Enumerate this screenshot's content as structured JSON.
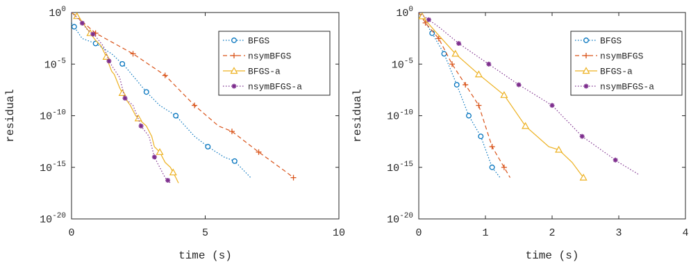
{
  "chart_data": [
    {
      "type": "line",
      "xlabel": "time (s)",
      "ylabel": "residual",
      "xlim": [
        0,
        10
      ],
      "ylim_log10": [
        -20,
        0
      ],
      "yscale": "log",
      "x_ticks": [
        "0",
        "5",
        "10"
      ],
      "y_ticks": [
        {
          "base": "10",
          "exp": "0"
        },
        {
          "base": "10",
          "exp": "-5"
        },
        {
          "base": "10",
          "exp": "-10"
        },
        {
          "base": "10",
          "exp": "-15"
        },
        {
          "base": "10",
          "exp": "-20"
        }
      ],
      "legend_position": "top-right",
      "grid": false,
      "series": [
        {
          "name": "BFGS",
          "color": "#0072BD",
          "style": "dotted",
          "marker": "circle",
          "x": [
            0,
            0.4,
            0.9,
            1.5,
            2.0,
            2.8,
            3.3,
            3.9,
            4.6,
            5.1,
            5.7,
            6.1,
            6.7
          ],
          "y": [
            0.1,
            0.003,
            0.001,
            0.0001,
            6e-06,
            2e-08,
            1e-09,
            1e-10,
            1e-12,
            1e-13,
            1e-14,
            4e-15,
            1e-16
          ],
          "marker_x": [
            0.1,
            0.9,
            1.9,
            2.8,
            3.9,
            5.1,
            6.1
          ]
        },
        {
          "name": "nsymBFGS",
          "color": "#D95319",
          "style": "dashed",
          "marker": "plus",
          "x": [
            0,
            0.9,
            1.6,
            2.3,
            3.5,
            4.6,
            5.5,
            6.0,
            7.0,
            8.0,
            8.3
          ],
          "y": [
            1,
            0.01,
            0.001,
            0.0001,
            8e-07,
            1e-09,
            1e-11,
            3e-12,
            3e-14,
            4e-16,
            1e-16
          ],
          "marker_x": [
            0.9,
            2.3,
            3.5,
            4.6,
            6.0,
            7.0,
            8.3
          ]
        },
        {
          "name": "BFGS-a",
          "color": "#EDB120",
          "style": "solid",
          "marker": "triangle",
          "x": [
            0,
            0.3,
            0.5,
            0.7,
            0.9,
            1.1,
            1.3,
            1.4,
            1.5,
            1.6,
            1.8,
            2.0,
            2.2,
            2.4,
            2.6,
            2.8,
            3.0,
            3.1,
            3.3,
            3.5,
            3.7,
            3.9,
            4.0
          ],
          "y": [
            1,
            0.3,
            0.05,
            0.01,
            0.002,
            0.0006,
            5e-05,
            1e-05,
            2e-06,
            1e-06,
            5e-08,
            5e-09,
            1e-09,
            1e-10,
            3e-11,
            1e-11,
            1e-12,
            1e-13,
            3e-14,
            3e-15,
            1e-15,
            1e-16,
            3e-17
          ],
          "marker_x": [
            0.2,
            0.7,
            1.3,
            1.9,
            2.5,
            3.3,
            3.8
          ]
        },
        {
          "name": "nsymBFGS-a",
          "color": "#7E2F8E",
          "style": "dotted",
          "marker": "star",
          "x": [
            0,
            0.3,
            0.6,
            0.9,
            1.2,
            1.4,
            1.6,
            1.8,
            2.0,
            2.3,
            2.6,
            2.9,
            3.1,
            3.3,
            3.5,
            3.7
          ],
          "y": [
            1,
            0.2,
            0.02,
            0.005,
            0.0005,
            2e-05,
            3e-06,
            5e-07,
            5e-09,
            1e-09,
            1e-11,
            1e-12,
            1e-14,
            1e-15,
            1e-16,
            3e-17
          ],
          "marker_x": [
            0.4,
            0.8,
            1.4,
            2.0,
            2.6,
            3.1,
            3.6
          ]
        }
      ]
    },
    {
      "type": "line",
      "xlabel": "time (s)",
      "ylabel": "residual",
      "xlim": [
        0,
        4
      ],
      "ylim_log10": [
        -20,
        0
      ],
      "yscale": "log",
      "x_ticks": [
        "0",
        "1",
        "2",
        "3",
        "4"
      ],
      "y_ticks": [
        {
          "base": "10",
          "exp": "0"
        },
        {
          "base": "10",
          "exp": "-5"
        },
        {
          "base": "10",
          "exp": "-10"
        },
        {
          "base": "10",
          "exp": "-15"
        },
        {
          "base": "10",
          "exp": "-20"
        }
      ],
      "legend_position": "top-right",
      "grid": false,
      "series": [
        {
          "name": "BFGS",
          "color": "#0072BD",
          "style": "dotted",
          "marker": "circle",
          "x": [
            0,
            0.2,
            0.38,
            0.57,
            0.75,
            0.93,
            1.1,
            1.22
          ],
          "y": [
            1,
            0.01,
            0.0001,
            1e-07,
            1e-10,
            1e-12,
            1e-15,
            1e-16
          ],
          "marker_x": [
            0.2,
            0.38,
            0.57,
            0.75,
            0.93,
            1.1
          ]
        },
        {
          "name": "nsymBFGS",
          "color": "#D95319",
          "style": "dashed",
          "marker": "plus",
          "x": [
            0,
            0.1,
            0.3,
            0.5,
            0.7,
            0.9,
            1.1,
            1.28,
            1.37
          ],
          "y": [
            1,
            0.1,
            0.003,
            1e-05,
            1e-07,
            1e-09,
            1e-13,
            1e-15,
            1e-16
          ],
          "marker_x": [
            0.1,
            0.3,
            0.5,
            0.7,
            0.9,
            1.1,
            1.28
          ]
        },
        {
          "name": "BFGS-a",
          "color": "#EDB120",
          "style": "solid",
          "marker": "triangle",
          "x": [
            0,
            0.27,
            0.55,
            0.9,
            1.28,
            1.6,
            1.95,
            2.1,
            2.3,
            2.47
          ],
          "y": [
            1,
            0.01,
            0.0001,
            1e-06,
            1e-08,
            1e-11,
            1e-13,
            5e-14,
            3e-15,
            1e-16
          ],
          "marker_x": [
            0.05,
            0.55,
            0.9,
            1.28,
            1.6,
            2.1,
            2.47
          ]
        },
        {
          "name": "nsymBFGS-a",
          "color": "#7E2F8E",
          "style": "dotted",
          "marker": "star",
          "x": [
            0,
            0.15,
            0.3,
            0.6,
            1.05,
            1.5,
            2.0,
            2.45,
            3.0,
            3.3
          ],
          "y": [
            1,
            0.2,
            0.04,
            0.001,
            1e-05,
            1e-07,
            1e-09,
            1e-12,
            3e-15,
            2e-16
          ],
          "marker_x": [
            0.15,
            0.6,
            1.05,
            1.5,
            2.0,
            2.45,
            2.95
          ]
        }
      ]
    }
  ]
}
